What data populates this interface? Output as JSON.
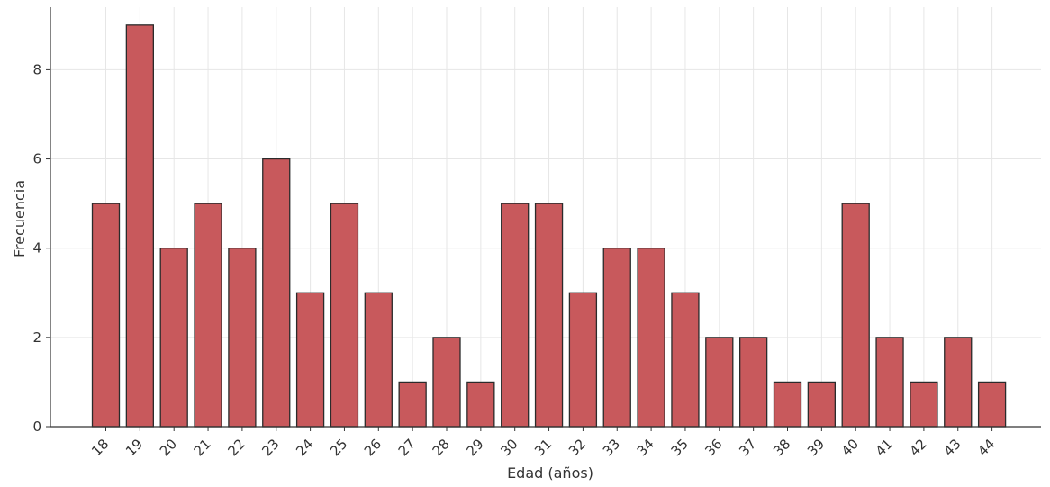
{
  "chart_data": {
    "type": "bar",
    "title": "",
    "xlabel": "Edad (años)",
    "ylabel": "Frecuencia",
    "categories": [
      "18",
      "19",
      "20",
      "21",
      "22",
      "23",
      "24",
      "25",
      "26",
      "27",
      "28",
      "29",
      "30",
      "31",
      "32",
      "33",
      "34",
      "35",
      "36",
      "37",
      "38",
      "39",
      "40",
      "41",
      "42",
      "43",
      "44"
    ],
    "values": [
      5,
      9,
      4,
      5,
      4,
      6,
      3,
      5,
      3,
      1,
      2,
      1,
      5,
      5,
      3,
      4,
      4,
      3,
      2,
      2,
      1,
      1,
      5,
      2,
      1,
      2,
      1
    ],
    "ylim": [
      0,
      9.4
    ],
    "yticks": [
      0,
      2,
      4,
      6,
      8
    ],
    "grid": true,
    "bar_color": "#c8595c",
    "bar_edge_color": "#2b2b2b",
    "grid_color": "#e6e6e6",
    "axis_color": "#333333"
  }
}
